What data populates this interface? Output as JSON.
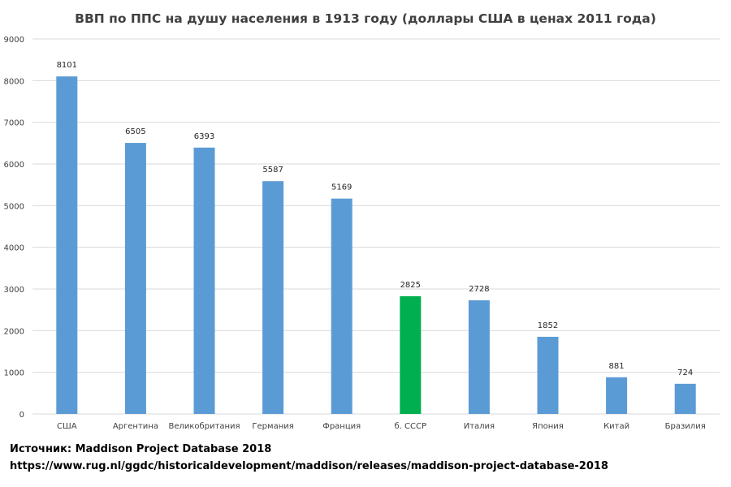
{
  "chart_data": {
    "type": "bar",
    "title": "ВВП по ППС на душу населения в 1913 году (доллары США в ценах 2011 года)",
    "categories": [
      "США",
      "Аргентина",
      "Великобритания",
      "Германия",
      "Франция",
      "б. СССР",
      "Италия",
      "Япония",
      "Китай",
      "Бразилия"
    ],
    "values": [
      8101,
      6505,
      6393,
      5587,
      5169,
      2825,
      2728,
      1852,
      881,
      724
    ],
    "ylim": [
      0,
      9000
    ],
    "yticks": [
      0,
      1000,
      2000,
      3000,
      4000,
      5000,
      6000,
      7000,
      8000,
      9000
    ],
    "grid": true,
    "legend": "none",
    "colors": {
      "default_bar": "#5b9bd5",
      "highlight_bar": "#00b050",
      "grid": "#d9d9d9"
    },
    "highlight_category": "б. СССР"
  },
  "source": {
    "line1": "Источник: Maddison Project Database 2018",
    "line2": "https://www.rug.nl/ggdc/historicaldevelopment/maddison/releases/maddison-project-database-2018"
  }
}
